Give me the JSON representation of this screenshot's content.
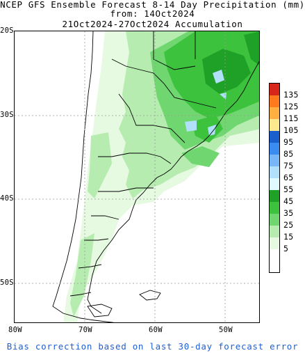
{
  "title": {
    "line1": "NCEP GFS Ensemble Forecast 8-14 Day Precipitation (mm)",
    "line2": "from: 14Oct2024",
    "line3": "21Oct2024-27Oct2024 Accumulation"
  },
  "axes": {
    "lat_labels": [
      "20S",
      "30S",
      "40S",
      "50S"
    ],
    "lon_labels": [
      "80W",
      "70W",
      "60W",
      "50W"
    ]
  },
  "legend": {
    "levels": [
      "135",
      "125",
      "115",
      "105",
      "95",
      "85",
      "75",
      "65",
      "55",
      "45",
      "35",
      "25",
      "15",
      "5"
    ],
    "colors": [
      "#d8261b",
      "#ff7a1c",
      "#ffb040",
      "#ffe98f",
      "#1a5fce",
      "#3b8cf0",
      "#77b7f7",
      "#b1e0fb",
      "#e0fbff",
      "#1fa027",
      "#3cc23c",
      "#70d670",
      "#b6ecb0",
      "#e6f9e1",
      "#ffffff"
    ]
  },
  "map": {
    "region": "South America (Southern Cone)",
    "colors": {
      "land": "#ffffff",
      "coast": "#000000",
      "grid": "#999999"
    }
  },
  "footer": "Bias correction based on last 30-day forecast error"
}
